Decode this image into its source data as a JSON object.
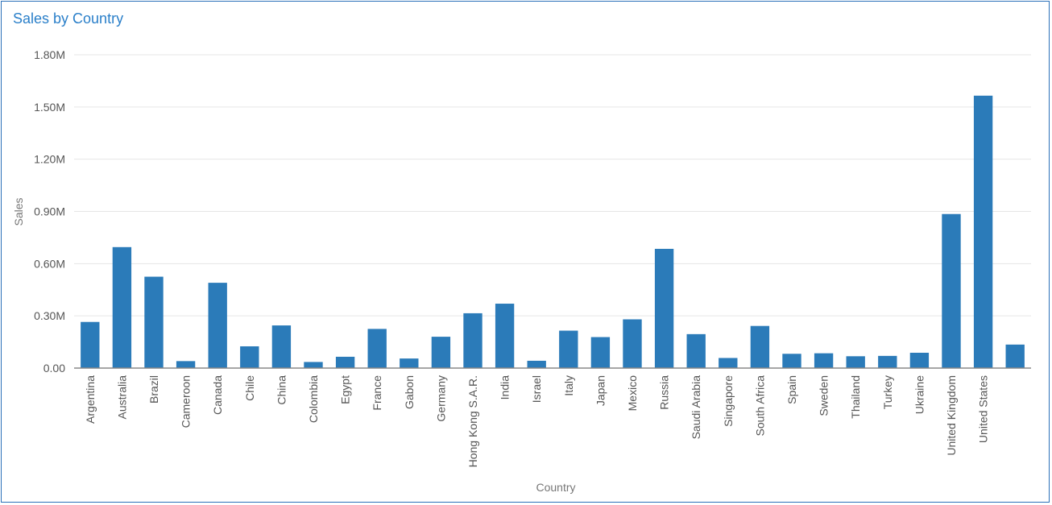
{
  "panel": {
    "title": "Sales by Country"
  },
  "colors": {
    "bar": "#2b7bb9",
    "grid": "#e6e6e6",
    "axis": "#888888",
    "title": "#2a7fc9"
  },
  "chart_data": {
    "type": "bar",
    "title": "Sales by Country",
    "xlabel": "Country",
    "ylabel": "Sales",
    "ylim": [
      0,
      1800000
    ],
    "y_ticks": [
      {
        "value": 0,
        "label": "0.00"
      },
      {
        "value": 300000,
        "label": "0.30M"
      },
      {
        "value": 600000,
        "label": "0.60M"
      },
      {
        "value": 900000,
        "label": "0.90M"
      },
      {
        "value": 1200000,
        "label": "1.20M"
      },
      {
        "value": 1500000,
        "label": "1.50M"
      },
      {
        "value": 1800000,
        "label": "1.80M"
      }
    ],
    "grid": true,
    "categories": [
      "Argentina",
      "Australia",
      "Brazil",
      "Cameroon",
      "Canada",
      "Chile",
      "China",
      "Colombia",
      "Egypt",
      "France",
      "Gabon",
      "Germany",
      "Hong Kong S.A.R.",
      "India",
      "Israel",
      "Italy",
      "Japan",
      "Mexico",
      "Russia",
      "Saudi Arabia",
      "Singapore",
      "South Africa",
      "Spain",
      "Sweden",
      "Thailand",
      "Turkey",
      "Ukraine",
      "United Kingdom",
      "United States",
      ""
    ],
    "values": [
      265000,
      695000,
      525000,
      40000,
      490000,
      125000,
      245000,
      35000,
      65000,
      225000,
      55000,
      180000,
      315000,
      370000,
      42000,
      215000,
      178000,
      280000,
      685000,
      195000,
      58000,
      242000,
      82000,
      85000,
      68000,
      70000,
      88000,
      885000,
      1565000,
      135000
    ]
  }
}
